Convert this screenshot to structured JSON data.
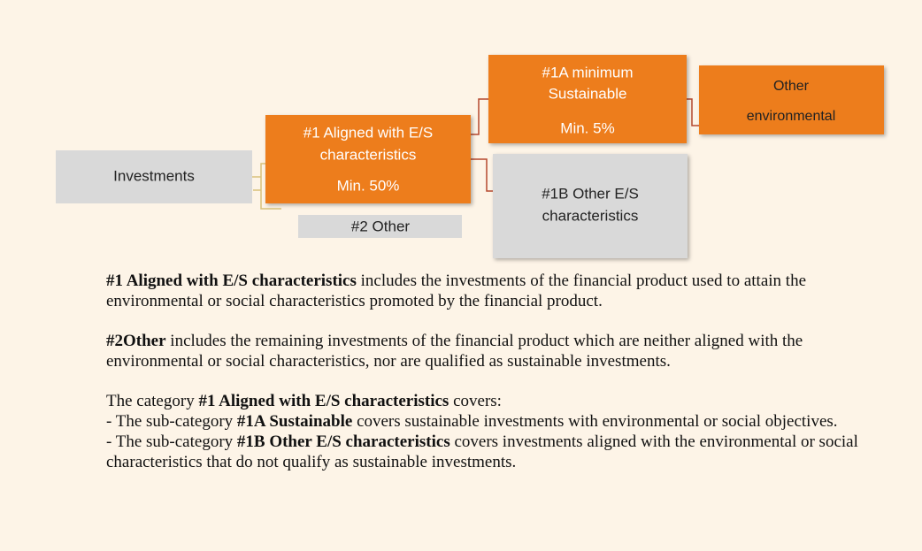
{
  "nodes": [
    {
      "lines": [
        "Investments"
      ]
    },
    {
      "lines": [
        "#1  Aligned with E/S",
        "characteristics",
        "Min. 50%"
      ]
    },
    {
      "lines": [
        "#2 Other"
      ]
    },
    {
      "lines": [
        "#1A minimum",
        "Sustainable",
        "Min. 5%"
      ]
    },
    {
      "lines": [
        "Other",
        "environmental"
      ]
    },
    {
      "lines": [
        "#1B Other E/S",
        "characteristics"
      ]
    }
  ],
  "blocks": [
    [
      [
        {
          "text": "#1 Aligned with E/S characteristics",
          "bold": true
        },
        {
          "text": " includes the investments of the financial product used to attain the environmental or social characteristics promoted by the financial product."
        }
      ]
    ],
    [
      [
        {
          "text": "#2Other",
          "bold": true
        },
        {
          "text": " includes the remaining investments of the financial product which are neither aligned with the environmental or social characteristics, nor are qualified as sustainable investments."
        }
      ]
    ],
    [
      [
        {
          "text": "The category "
        },
        {
          "text": "#1 Aligned with E/S characteristics",
          "bold": true
        },
        {
          "text": " covers:"
        }
      ],
      [
        {
          "text": "- The sub-category "
        },
        {
          "text": "#1A Sustainable",
          "bold": true
        },
        {
          "text": " covers sustainable investments with environmental or social objectives."
        }
      ],
      [
        {
          "text": "- The sub-category "
        },
        {
          "text": "#1B Other E/S characteristics",
          "bold": true
        },
        {
          "text": " covers investments aligned with the environmental or social characteristics that do not qualify as sustainable investments."
        }
      ]
    ]
  ]
}
